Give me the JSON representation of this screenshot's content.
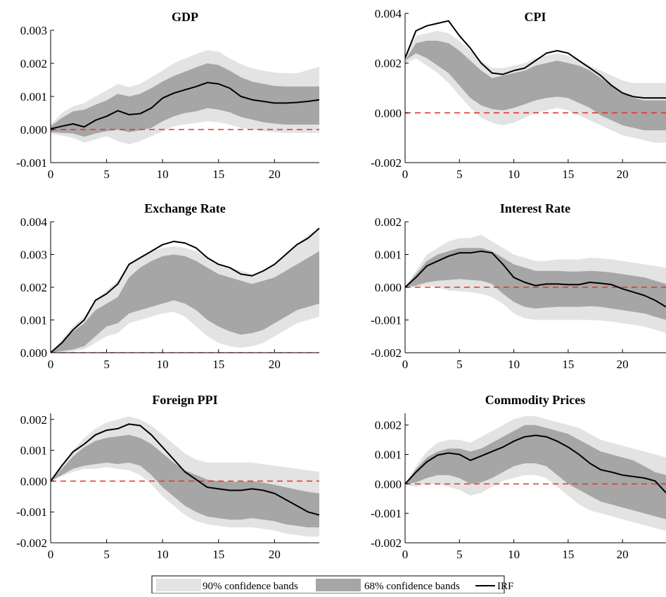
{
  "colors": {
    "band90": "#e3e3e3",
    "band68": "#a6a6a6",
    "irf": "#000000",
    "zero_line": "#e8312a",
    "axis": "#000000"
  },
  "legend": {
    "items": [
      {
        "label": "90% confidence bands",
        "kind": "band90"
      },
      {
        "label": "68% confidence bands",
        "kind": "band68"
      },
      {
        "label": "IRF",
        "kind": "line"
      }
    ],
    "placement": "bottom-center"
  },
  "chart_data": [
    {
      "type": "area",
      "title": "GDP",
      "xlim": [
        0,
        24
      ],
      "ylim": [
        -0.001,
        0.003
      ],
      "xticks": [
        0,
        5,
        10,
        15,
        20
      ],
      "yticks": [
        "-0.001",
        "0.000",
        "0.001",
        "0.002",
        "0.003"
      ],
      "grid": false,
      "zero_line": true,
      "x": [
        0,
        1,
        2,
        3,
        4,
        5,
        6,
        7,
        8,
        9,
        10,
        11,
        12,
        13,
        14,
        15,
        16,
        17,
        18,
        19,
        20,
        21,
        22,
        23,
        24
      ],
      "irf": [
        2e-05,
        0.0001,
        0.00017,
        8e-05,
        0.00028,
        0.0004,
        0.00057,
        0.00045,
        0.00048,
        0.00065,
        0.00095,
        0.0011,
        0.0012,
        0.0013,
        0.00142,
        0.00138,
        0.00125,
        0.001,
        0.0009,
        0.00085,
        0.0008,
        0.0008,
        0.00082,
        0.00085,
        0.0009
      ],
      "band68_upper": [
        0.0001,
        0.00035,
        0.00055,
        0.0006,
        0.00075,
        0.00088,
        0.00108,
        0.001,
        0.00108,
        0.00125,
        0.00145,
        0.00162,
        0.00175,
        0.00188,
        0.002,
        0.00195,
        0.00178,
        0.00158,
        0.00145,
        0.00138,
        0.00132,
        0.0013,
        0.0013,
        0.0013,
        0.0013
      ],
      "band68_lower": [
        -8e-05,
        -0.0001,
        -0.00012,
        -0.00022,
        -0.00012,
        -5e-05,
        0.0,
        -8e-05,
        -2e-05,
        5e-05,
        0.00025,
        0.0004,
        0.0005,
        0.00055,
        0.00065,
        0.0006,
        0.00052,
        0.00038,
        0.0003,
        0.00022,
        0.00018,
        0.00015,
        0.00015,
        0.00015,
        0.00015
      ],
      "band90_upper": [
        0.00015,
        0.0005,
        0.0007,
        0.0008,
        0.001,
        0.00118,
        0.00138,
        0.00128,
        0.00138,
        0.00158,
        0.00178,
        0.002,
        0.00215,
        0.00228,
        0.0024,
        0.00235,
        0.00215,
        0.00198,
        0.00185,
        0.00178,
        0.00172,
        0.0017,
        0.0017,
        0.0018,
        0.0019
      ],
      "band90_lower": [
        -0.00013,
        -0.00018,
        -0.00025,
        -0.0004,
        -0.0003,
        -0.0002,
        -0.00035,
        -0.00045,
        -0.00035,
        -0.0002,
        -5e-05,
        0.0001,
        0.00015,
        0.0002,
        0.00025,
        0.00022,
        0.00015,
        5e-05,
        0.0,
        -5e-05,
        -8e-05,
        -0.0001,
        -0.0001,
        -0.0001,
        -0.0001
      ]
    },
    {
      "type": "area",
      "title": "CPI",
      "xlim": [
        0,
        24
      ],
      "ylim": [
        -0.002,
        0.004
      ],
      "xticks": [
        0,
        5,
        10,
        15,
        20
      ],
      "yticks": [
        "-0.002",
        "0.000",
        "0.002",
        "0.004"
      ],
      "grid": false,
      "zero_line": true,
      "x": [
        0,
        1,
        2,
        3,
        4,
        5,
        6,
        7,
        8,
        9,
        10,
        11,
        12,
        13,
        14,
        15,
        16,
        17,
        18,
        19,
        20,
        21,
        22,
        23,
        24
      ],
      "irf": [
        0.0022,
        0.0033,
        0.0035,
        0.0036,
        0.0037,
        0.0031,
        0.0026,
        0.002,
        0.0016,
        0.00155,
        0.0017,
        0.0018,
        0.0021,
        0.0024,
        0.0025,
        0.0024,
        0.0021,
        0.0018,
        0.0015,
        0.0011,
        0.0008,
        0.00065,
        0.0006,
        0.0006,
        0.0006
      ],
      "band68_upper": [
        0.0021,
        0.0028,
        0.0029,
        0.0029,
        0.0028,
        0.0025,
        0.0021,
        0.0017,
        0.0014,
        0.0015,
        0.0016,
        0.0017,
        0.0019,
        0.002,
        0.0021,
        0.002,
        0.0019,
        0.0017,
        0.0014,
        0.0011,
        0.0008,
        0.0006,
        0.0005,
        0.0005,
        0.0005
      ],
      "band68_lower": [
        0.0021,
        0.0024,
        0.0022,
        0.0019,
        0.0016,
        0.0011,
        0.0006,
        0.0003,
        0.00015,
        0.0001,
        0.0002,
        0.00035,
        0.0005,
        0.0006,
        0.00065,
        0.0006,
        0.0004,
        0.0002,
        -0.0001,
        -0.0003,
        -0.0005,
        -0.0006,
        -0.0007,
        -0.0007,
        -0.0007
      ],
      "band90_upper": [
        0.0023,
        0.0031,
        0.0032,
        0.0033,
        0.0032,
        0.0029,
        0.0025,
        0.0021,
        0.0018,
        0.0018,
        0.0019,
        0.002,
        0.0022,
        0.0023,
        0.0024,
        0.0023,
        0.0021,
        0.0019,
        0.0017,
        0.0015,
        0.0013,
        0.0012,
        0.0012,
        0.0012,
        0.0012
      ],
      "band90_lower": [
        0.002,
        0.0022,
        0.0019,
        0.0016,
        0.0012,
        0.0007,
        0.0002,
        -0.0002,
        -0.0004,
        -0.0005,
        -0.0004,
        -0.0002,
        0.0,
        0.0001,
        0.0002,
        0.0001,
        -0.0001,
        -0.0003,
        -0.0005,
        -0.0007,
        -0.0009,
        -0.001,
        -0.0011,
        -0.0012,
        -0.0012
      ]
    },
    {
      "type": "area",
      "title": "Exchange Rate",
      "xlim": [
        0,
        24
      ],
      "ylim": [
        0.0,
        0.004
      ],
      "xticks": [
        0,
        5,
        10,
        15,
        20
      ],
      "yticks": [
        "0.000",
        "0.001",
        "0.002",
        "0.003",
        "0.004"
      ],
      "grid": false,
      "zero_line": true,
      "x": [
        0,
        1,
        2,
        3,
        4,
        5,
        6,
        7,
        8,
        9,
        10,
        11,
        12,
        13,
        14,
        15,
        16,
        17,
        18,
        19,
        20,
        21,
        22,
        23,
        24
      ],
      "irf": [
        0.0,
        0.0003,
        0.0007,
        0.001,
        0.0016,
        0.0018,
        0.0021,
        0.0027,
        0.0029,
        0.0031,
        0.0033,
        0.0034,
        0.00335,
        0.0032,
        0.0029,
        0.0027,
        0.0026,
        0.0024,
        0.00235,
        0.0025,
        0.0027,
        0.003,
        0.0033,
        0.0035,
        0.0038
      ],
      "band68_upper": [
        0.0,
        0.0003,
        0.00065,
        0.0009,
        0.0013,
        0.0015,
        0.0017,
        0.0023,
        0.0026,
        0.0028,
        0.00295,
        0.003,
        0.00295,
        0.0028,
        0.0026,
        0.0024,
        0.0023,
        0.0022,
        0.0021,
        0.0022,
        0.0023,
        0.0025,
        0.0027,
        0.0029,
        0.0031
      ],
      "band68_lower": [
        0.0,
        5e-05,
        0.0001,
        0.0002,
        0.0005,
        0.0008,
        0.0009,
        0.0012,
        0.0013,
        0.0014,
        0.0015,
        0.0016,
        0.0015,
        0.0013,
        0.001,
        0.0008,
        0.00065,
        0.00055,
        0.0006,
        0.0007,
        0.0009,
        0.0011,
        0.0013,
        0.0014,
        0.0015
      ],
      "band90_upper": [
        0.0,
        0.0004,
        0.0008,
        0.0011,
        0.0016,
        0.0019,
        0.0022,
        0.0027,
        0.0029,
        0.0031,
        0.0032,
        0.00325,
        0.0032,
        0.0031,
        0.0029,
        0.0027,
        0.0026,
        0.0025,
        0.0024,
        0.0025,
        0.0027,
        0.003,
        0.0033,
        0.0036,
        0.0038
      ],
      "band90_lower": [
        0.0,
        0.0,
        5e-05,
        0.0001,
        0.0003,
        0.0005,
        0.0006,
        0.0009,
        0.001,
        0.0011,
        0.0012,
        0.00125,
        0.0011,
        0.0008,
        0.0005,
        0.0003,
        0.0002,
        0.00015,
        0.0002,
        0.0003,
        0.0005,
        0.0007,
        0.0009,
        0.001,
        0.0011
      ]
    },
    {
      "type": "area",
      "title": "Interest Rate",
      "xlim": [
        0,
        24
      ],
      "ylim": [
        -0.002,
        0.002
      ],
      "xticks": [
        0,
        5,
        10,
        15,
        20
      ],
      "yticks": [
        "-0.002",
        "-0.001",
        "0.000",
        "0.001",
        "0.002"
      ],
      "grid": false,
      "zero_line": true,
      "x": [
        0,
        1,
        2,
        3,
        4,
        5,
        6,
        7,
        8,
        9,
        10,
        11,
        12,
        13,
        14,
        15,
        16,
        17,
        18,
        19,
        20,
        21,
        22,
        23,
        24
      ],
      "irf": [
        0.0,
        0.0003,
        0.00065,
        0.0008,
        0.00095,
        0.00105,
        0.00105,
        0.0011,
        0.00105,
        0.0007,
        0.0003,
        0.00015,
        5e-05,
        0.0001,
        0.0001,
        8e-05,
        8e-05,
        0.00015,
        0.00012,
        8e-05,
        -5e-05,
        -0.00015,
        -0.00025,
        -0.0004,
        -0.0006
      ],
      "band68_upper": [
        0.0,
        0.0004,
        0.0008,
        0.001,
        0.0011,
        0.0012,
        0.0012,
        0.0012,
        0.0011,
        0.0009,
        0.0007,
        0.0006,
        0.0005,
        0.0005,
        0.0005,
        0.00048,
        0.00048,
        0.0005,
        0.00048,
        0.00045,
        0.0004,
        0.00035,
        0.0003,
        0.0002,
        0.0001
      ],
      "band68_lower": [
        0.0,
        5e-05,
        0.00015,
        0.0002,
        0.00022,
        0.00025,
        0.00022,
        0.0002,
        0.0001,
        -0.0002,
        -0.00045,
        -0.0006,
        -0.00065,
        -0.00062,
        -0.0006,
        -0.0006,
        -0.0006,
        -0.00058,
        -0.0006,
        -0.00065,
        -0.0007,
        -0.00075,
        -0.0008,
        -0.0009,
        -0.001
      ],
      "band90_upper": [
        0.0,
        0.0005,
        0.001,
        0.0012,
        0.0014,
        0.0015,
        0.0015,
        0.0016,
        0.0014,
        0.0012,
        0.001,
        0.0009,
        0.0008,
        0.0008,
        0.00085,
        0.00085,
        0.00085,
        0.0009,
        0.00088,
        0.00085,
        0.0008,
        0.00075,
        0.0007,
        0.00065,
        0.0006
      ],
      "band90_lower": [
        0.0,
        0.0,
        5e-05,
        0.0,
        -0.0001,
        -0.00012,
        -0.00015,
        -0.0002,
        -0.0003,
        -0.0005,
        -0.0008,
        -0.00095,
        -0.001,
        -0.001,
        -0.001,
        -0.001,
        -0.001,
        -0.001,
        -0.00102,
        -0.00105,
        -0.0011,
        -0.00115,
        -0.0012,
        -0.0013,
        -0.0014
      ]
    },
    {
      "type": "area",
      "title": "Foreign PPI",
      "xlim": [
        0,
        24
      ],
      "ylim": [
        -0.002,
        0.0022
      ],
      "xticks": [
        0,
        5,
        10,
        15,
        20
      ],
      "yticks": [
        "-0.002",
        "-0.001",
        "0.000",
        "0.001",
        "0.002"
      ],
      "grid": false,
      "zero_line": true,
      "x": [
        0,
        1,
        2,
        3,
        4,
        5,
        6,
        7,
        8,
        9,
        10,
        11,
        12,
        13,
        14,
        15,
        16,
        17,
        18,
        19,
        20,
        21,
        22,
        23,
        24
      ],
      "irf": [
        0.0,
        0.0005,
        0.00095,
        0.0012,
        0.0015,
        0.00165,
        0.0017,
        0.00185,
        0.0018,
        0.0015,
        0.0011,
        0.0007,
        0.0003,
        5e-05,
        -0.0002,
        -0.00025,
        -0.0003,
        -0.0003,
        -0.00025,
        -0.0003,
        -0.0004,
        -0.0006,
        -0.0008,
        -0.001,
        -0.0011
      ],
      "band68_upper": [
        0.0,
        0.0004,
        0.0008,
        0.0011,
        0.0013,
        0.0014,
        0.00145,
        0.0015,
        0.0014,
        0.0012,
        0.0009,
        0.0006,
        0.00035,
        0.0002,
        5e-05,
        0.0,
        -2e-05,
        -2e-05,
        0.0,
        -5e-05,
        -0.00012,
        -0.0002,
        -0.00028,
        -0.00035,
        -0.0004
      ],
      "band68_lower": [
        0.0,
        0.0002,
        0.0004,
        0.0005,
        0.00055,
        0.0006,
        0.00055,
        0.0006,
        0.0005,
        0.0002,
        -0.0002,
        -0.0005,
        -0.0008,
        -0.001,
        -0.00115,
        -0.0012,
        -0.00125,
        -0.00125,
        -0.0012,
        -0.00125,
        -0.0013,
        -0.0014,
        -0.00145,
        -0.0015,
        -0.0015
      ],
      "band90_upper": [
        0.0,
        0.0005,
        0.001,
        0.0014,
        0.0017,
        0.0019,
        0.002,
        0.0021,
        0.002,
        0.0018,
        0.0015,
        0.0012,
        0.0009,
        0.0007,
        0.0006,
        0.0006,
        0.0006,
        0.0006,
        0.0006,
        0.00055,
        0.0005,
        0.00045,
        0.0004,
        0.00035,
        0.0003
      ],
      "band90_lower": [
        0.0,
        0.00015,
        0.0003,
        0.0004,
        0.0004,
        0.00045,
        0.0004,
        0.00035,
        0.0002,
        -0.0001,
        -0.0005,
        -0.0008,
        -0.0011,
        -0.0013,
        -0.0014,
        -0.00145,
        -0.0015,
        -0.0015,
        -0.0015,
        -0.00155,
        -0.0016,
        -0.0017,
        -0.00175,
        -0.0018,
        -0.0018
      ]
    },
    {
      "type": "area",
      "title": "Commodity Prices",
      "xlim": [
        0,
        24
      ],
      "ylim": [
        -0.002,
        0.0024
      ],
      "xticks": [
        0,
        5,
        10,
        15,
        20
      ],
      "yticks": [
        "-0.002",
        "-0.001",
        "0.000",
        "0.001",
        "0.002"
      ],
      "grid": false,
      "zero_line": true,
      "x": [
        0,
        1,
        2,
        3,
        4,
        5,
        6,
        7,
        8,
        9,
        10,
        11,
        12,
        13,
        14,
        15,
        16,
        17,
        18,
        19,
        20,
        21,
        22,
        23,
        24
      ],
      "irf": [
        0.0,
        0.0004,
        0.00075,
        0.00098,
        0.00105,
        0.001,
        0.0008,
        0.00095,
        0.0011,
        0.00125,
        0.00145,
        0.0016,
        0.00165,
        0.0016,
        0.00145,
        0.00125,
        0.001,
        0.0007,
        0.00048,
        0.0004,
        0.0003,
        0.00025,
        0.0002,
        0.0001,
        -0.0003
      ],
      "band68_upper": [
        0.0,
        0.0005,
        0.0009,
        0.0011,
        0.0012,
        0.0012,
        0.0011,
        0.0012,
        0.0014,
        0.0016,
        0.0018,
        0.002,
        0.002,
        0.0019,
        0.0018,
        0.0017,
        0.0015,
        0.0013,
        0.0011,
        0.001,
        0.0009,
        0.0008,
        0.0006,
        0.0004,
        0.0003
      ],
      "band68_lower": [
        0.0,
        5e-05,
        0.0002,
        0.0003,
        0.0003,
        0.0002,
        0.0,
        5e-05,
        0.0002,
        0.0004,
        0.0006,
        0.0007,
        0.0007,
        0.0006,
        0.0003,
        0.0,
        -0.0002,
        -0.0004,
        -0.0006,
        -0.0007,
        -0.0008,
        -0.0009,
        -0.001,
        -0.0011,
        -0.0012
      ],
      "band90_upper": [
        0.0,
        0.0006,
        0.0011,
        0.0014,
        0.0015,
        0.0015,
        0.0014,
        0.0016,
        0.0018,
        0.002,
        0.0022,
        0.0023,
        0.0023,
        0.0022,
        0.0021,
        0.002,
        0.0019,
        0.0017,
        0.0015,
        0.0014,
        0.0013,
        0.0012,
        0.0011,
        0.001,
        0.0009
      ],
      "band90_lower": [
        0.0,
        -0.0001,
        0.0,
        0.0,
        -0.0001,
        -0.0002,
        -0.0004,
        -0.0003,
        -0.0001,
        0.0001,
        0.0002,
        0.0003,
        0.0003,
        0.0002,
        -0.0001,
        -0.0004,
        -0.0007,
        -0.0009,
        -0.001,
        -0.0011,
        -0.0012,
        -0.0013,
        -0.0014,
        -0.0015,
        -0.0016
      ]
    }
  ]
}
